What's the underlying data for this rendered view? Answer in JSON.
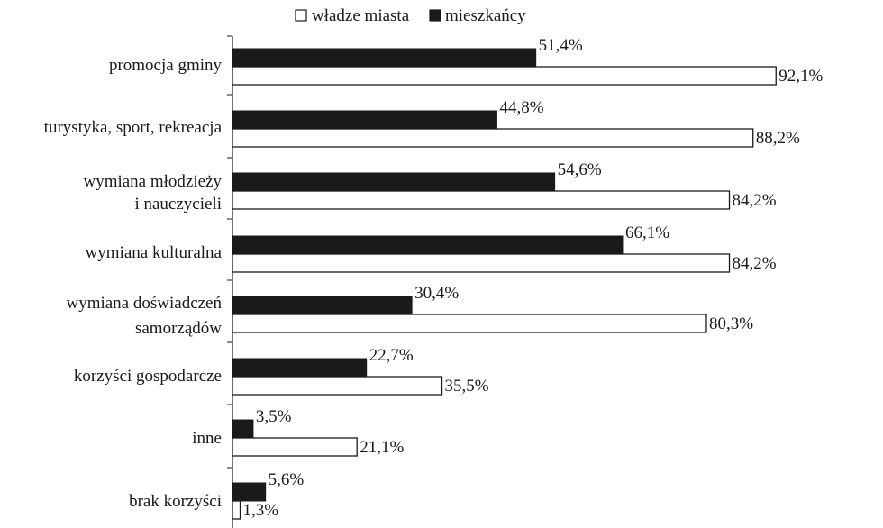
{
  "chart_data": {
    "type": "bar",
    "orientation": "horizontal",
    "title": "",
    "xlabel": "",
    "ylabel": "",
    "xlim": [
      0,
      100
    ],
    "grid": false,
    "legend_placement": "top",
    "value_suffix": "%",
    "categories": [
      [
        "promocja gminy"
      ],
      [
        "turystyka, sport, rekreacja"
      ],
      [
        "wymiana młodzieży",
        "i nauczycieli"
      ],
      [
        "wymiana kulturalna"
      ],
      [
        "wymiana doświadczeń",
        "samorządów"
      ],
      [
        "korzyści gospodarcze"
      ],
      [
        "inne"
      ],
      [
        "brak korzyści"
      ]
    ],
    "series": [
      {
        "name": "mieszkańcy",
        "color": "#1a1a1a",
        "values": [
          51.4,
          44.8,
          54.6,
          66.1,
          30.4,
          22.7,
          3.5,
          5.6
        ],
        "labels": [
          "51,4%",
          "44,8%",
          "54,6%",
          "66,1%",
          "30,4%",
          "22,7%",
          "3,5%",
          "5,6%"
        ]
      },
      {
        "name": "władze miasta",
        "color": "#ffffff",
        "values": [
          92.1,
          88.2,
          84.2,
          84.2,
          80.3,
          35.5,
          21.1,
          1.3
        ],
        "labels": [
          "92,1%",
          "88,2%",
          "84,2%",
          "84,2%",
          "80,3%",
          "35,5%",
          "21,1%",
          "1,3%"
        ]
      }
    ],
    "legend": [
      {
        "name": "władze miasta",
        "swatch": "white"
      },
      {
        "name": "mieszkańcy",
        "swatch": "black"
      }
    ]
  }
}
